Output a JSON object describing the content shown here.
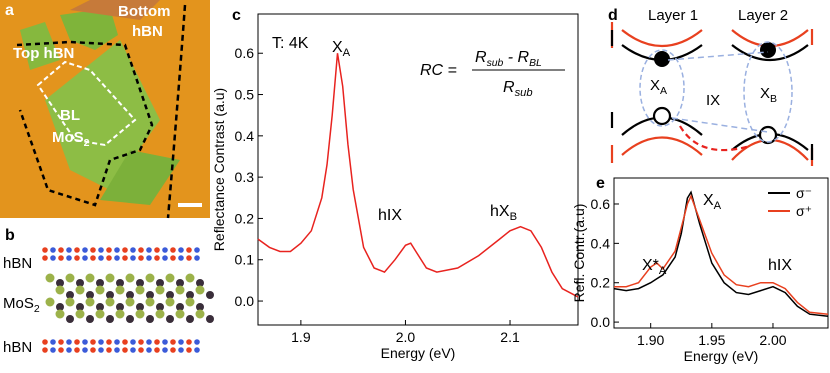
{
  "panels": {
    "a": {
      "label": "a",
      "top_hbn": "Top hBN",
      "bottom": [
        "Bottom",
        "hBN"
      ],
      "bl": "BL",
      "mos": {
        "text": "MoS",
        "sub": "2"
      }
    },
    "b": {
      "label": "b",
      "layers": [
        {
          "text": "hBN"
        },
        {
          "text": "MoS",
          "sub": "2"
        },
        {
          "text": "hBN"
        }
      ]
    },
    "d": {
      "label": "d",
      "layer1": "Layer 1",
      "layer2": "Layer 2",
      "xa": {
        "text": "X",
        "sub": "A"
      },
      "ix": "IX",
      "xb": {
        "text": "X",
        "sub": "B"
      }
    }
  },
  "chart_data": [
    {
      "type": "line",
      "panel_label": "c",
      "xlabel": "Energy (eV)",
      "ylabel": "Reflectance Contrast (a.u)",
      "color": "#e8231f",
      "x": [
        1.859,
        1.87,
        1.88,
        1.89,
        1.9,
        1.91,
        1.92,
        1.925,
        1.93,
        1.935,
        1.94,
        1.945,
        1.95,
        1.96,
        1.97,
        1.98,
        1.99,
        2.0,
        2.005,
        2.01,
        2.02,
        2.03,
        2.05,
        2.07,
        2.09,
        2.1,
        2.11,
        2.12,
        2.13,
        2.14,
        2.15,
        2.165
      ],
      "values": [
        0.15,
        0.13,
        0.12,
        0.12,
        0.14,
        0.17,
        0.25,
        0.33,
        0.45,
        0.6,
        0.52,
        0.38,
        0.27,
        0.13,
        0.08,
        0.07,
        0.1,
        0.135,
        0.14,
        0.12,
        0.08,
        0.07,
        0.08,
        0.11,
        0.15,
        0.17,
        0.18,
        0.17,
        0.13,
        0.07,
        0.03,
        0.01
      ],
      "xlim": [
        1.859,
        2.165
      ],
      "ylim": [
        -0.058,
        0.695
      ],
      "xticks": [
        1.9,
        {
          "value": 2,
          "label": "2.0"
        },
        2.1
      ],
      "yticks": [
        {
          "value": 0,
          "label": "0.0"
        },
        0.1,
        0.2,
        0.3,
        0.4,
        0.5,
        0.6
      ],
      "annotations": [
        "T: 4K",
        {
          "text": "X",
          "sub": "A"
        },
        "hIX",
        {
          "text": "hX",
          "sub": "B"
        }
      ],
      "formula": {
        "lhs": "RC =",
        "num": [
          {
            "text": "R",
            "sub": "sub"
          },
          {
            "text": " - R",
            "sub": "BL"
          }
        ],
        "den": {
          "text": "R",
          "sub": "sub"
        }
      }
    },
    {
      "type": "line",
      "panel_label": "e",
      "xlabel": "Energy (eV)",
      "ylabel": "Refl. Contr.(a.u)",
      "legend": "upper right",
      "x": [
        1.87,
        1.88,
        1.89,
        1.9,
        1.905,
        1.91,
        1.92,
        1.925,
        1.93,
        1.933,
        1.94,
        1.95,
        1.96,
        1.97,
        1.98,
        1.99,
        2.0,
        2.01,
        2.02,
        2.03,
        2.045
      ],
      "series": [
        {
          "name": "σ⁻",
          "color": "#000000",
          "values": [
            0.17,
            0.16,
            0.17,
            0.2,
            0.22,
            0.24,
            0.33,
            0.45,
            0.63,
            0.66,
            0.5,
            0.3,
            0.2,
            0.15,
            0.14,
            0.16,
            0.18,
            0.15,
            0.08,
            0.04,
            0.03
          ]
        },
        {
          "name": "σ⁺",
          "color": "#e8401f",
          "values": [
            0.18,
            0.18,
            0.2,
            0.28,
            0.3,
            0.27,
            0.36,
            0.48,
            0.6,
            0.64,
            0.52,
            0.35,
            0.24,
            0.19,
            0.18,
            0.2,
            0.2,
            0.17,
            0.1,
            0.05,
            0.04
          ]
        }
      ],
      "xlim": [
        1.87,
        2.045
      ],
      "ylim": [
        -0.03,
        0.732
      ],
      "xticks": [
        {
          "value": 1.9,
          "label": "1.90"
        },
        1.95,
        {
          "value": 2,
          "label": "2.00"
        }
      ],
      "yticks": [
        {
          "value": 0,
          "label": "0.0"
        },
        0.2,
        0.4,
        0.6
      ],
      "annotations": [
        {
          "text": "X*",
          "sub": "A"
        },
        {
          "text": "X",
          "sub": "A"
        },
        "hIX"
      ]
    }
  ]
}
